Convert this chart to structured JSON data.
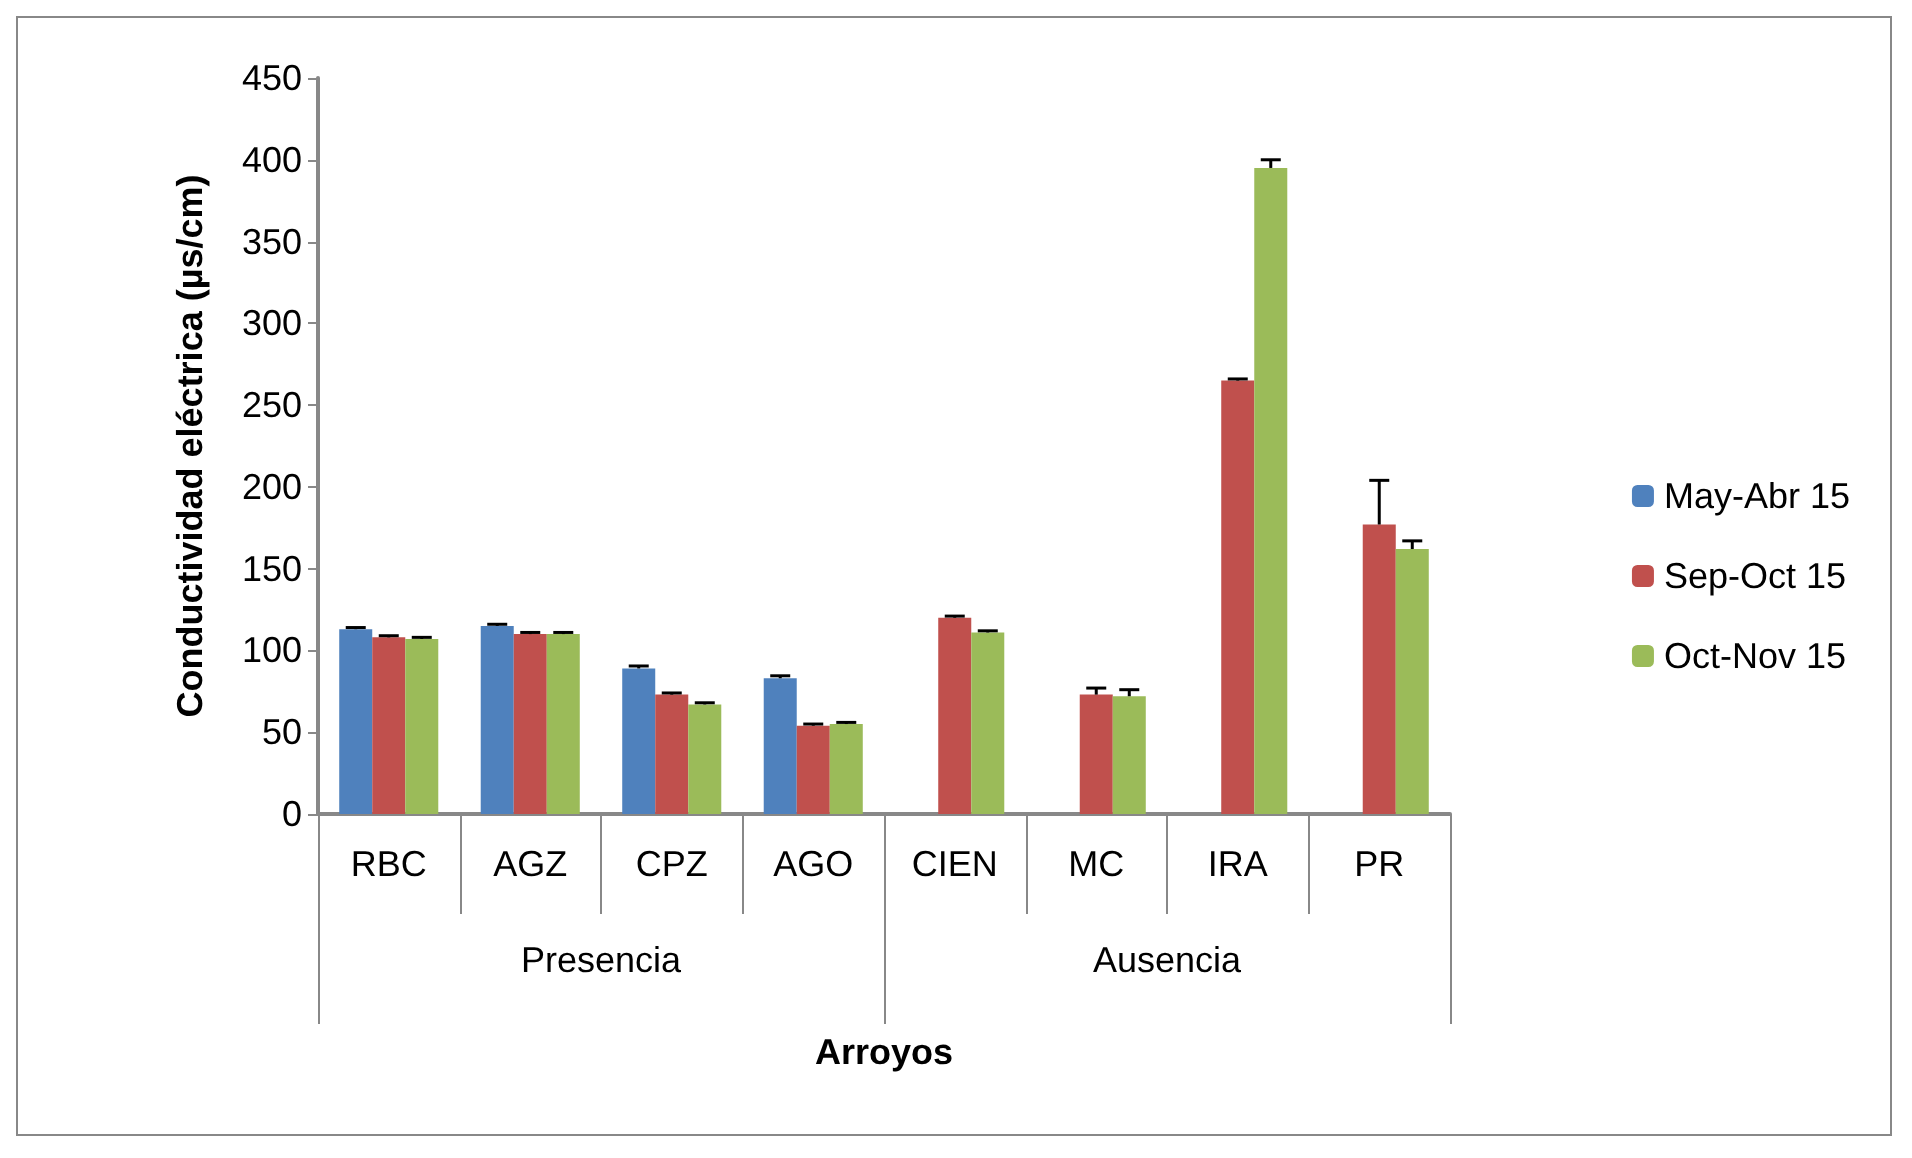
{
  "chart_data": {
    "type": "bar",
    "xlabel": "Arroyos",
    "ylabel": "Conductividad eléctrica (µs/cm)",
    "categories": [
      "RBC",
      "AGZ",
      "CPZ",
      "AGO",
      "CIEN",
      "MC",
      "IRA",
      "PR"
    ],
    "series": [
      {
        "name": "May-Abr 15",
        "color": "#4f81bd",
        "values": [
          113,
          115,
          89,
          83,
          null,
          null,
          null,
          null
        ],
        "errors": [
          1,
          1,
          1.5,
          1.5,
          null,
          null,
          null,
          null
        ]
      },
      {
        "name": "Sep-Oct 15",
        "color": "#c0504d",
        "values": [
          108,
          110,
          73,
          54,
          120,
          73,
          265,
          177
        ],
        "errors": [
          1,
          1,
          1,
          1,
          1,
          4,
          1,
          27
        ]
      },
      {
        "name": "Oct-Nov 15",
        "color": "#9bbb59",
        "values": [
          107,
          110,
          67,
          55,
          111,
          72,
          395,
          162
        ],
        "errors": [
          1,
          1,
          1,
          1,
          1,
          4,
          5,
          5
        ]
      }
    ],
    "annotations": [
      "Presencia",
      "Ausencia"
    ],
    "ylim": [
      0,
      450
    ],
    "yticks": [
      0,
      50,
      100,
      150,
      200,
      250,
      300,
      350,
      400,
      450
    ],
    "grid": false,
    "legend": "right"
  }
}
